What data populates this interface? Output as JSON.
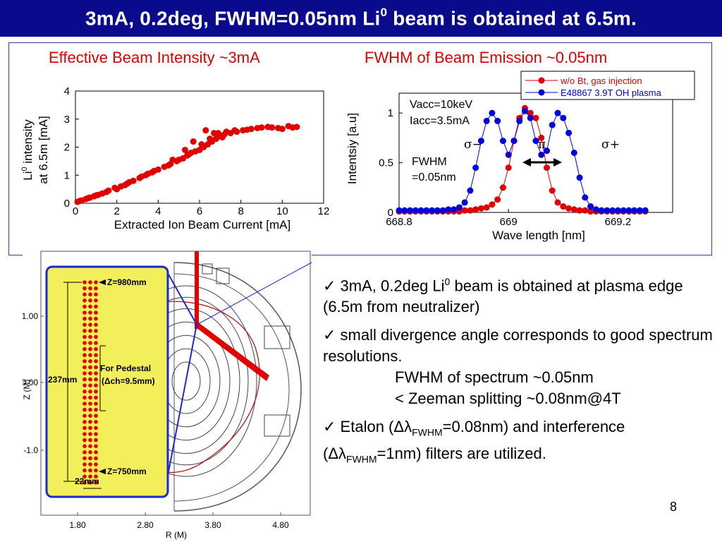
{
  "slide": {
    "title": "3mA, 0.2deg, FWHM=0.05nm Li",
    "title_sup": "0",
    "title_rest": " beam is obtained at 6.5m.",
    "page_number": "8"
  },
  "colors": {
    "title_bg": "#0a0a8c",
    "red": "#e00000",
    "blue": "#0000dd",
    "figure_yellow": "#f2ef5a"
  },
  "bullets": [
    {
      "check": "✓",
      "pre": " 3mA, 0.2deg Li",
      "sup": "0",
      "post": " beam is obtained at plasma edge (6.5m from neutralizer)"
    },
    {
      "check": "✓",
      "text": " small divergence angle corresponds to good spectrum resolutions.",
      "indent1": "FWHM of spectrum ~0.05nm",
      "indent2": "< Zeeman splitting ~0.08nm@4T"
    },
    {
      "check": "✓",
      "a": " Etalon (",
      "symbol1": "Δλ",
      "sub1": "FWHM",
      "b": "=0.08nm) and interference (",
      "symbol2": "Δλ",
      "sub2": "FWHM",
      "c": "=1nm) filters are utilized."
    }
  ],
  "chart_data": [
    {
      "type": "scatter",
      "title": "Effective Beam Intensity ~3mA",
      "xlabel": "Extracted Ion Beam Current [mA]",
      "ylabel_line1": "Li",
      "ylabel_sup": "0",
      "ylabel_line1_rest": " intensity",
      "ylabel_line2": "at 6.5m [mA]",
      "xlim": [
        0,
        12
      ],
      "ylim": [
        0,
        4
      ],
      "xticks": [
        "0",
        "2",
        "4",
        "6",
        "8",
        "10",
        "12"
      ],
      "yticks": [
        "0",
        "1",
        "2",
        "3",
        "4"
      ],
      "series": [
        {
          "color": "#e00000",
          "x": [
            0.1,
            0.3,
            0.5,
            0.7,
            0.9,
            1.1,
            1.3,
            1.6,
            1.9,
            2.2,
            2.5,
            2.8,
            3.1,
            3.4,
            3.7,
            4.0,
            4.3,
            4.6,
            4.9,
            5.2,
            5.4,
            5.6,
            5.8,
            6.0,
            6.2,
            6.4,
            6.6,
            6.8,
            7.0,
            7.2,
            7.5,
            7.8,
            8.1,
            8.5,
            9.0,
            9.5,
            10.0,
            10.5,
            0.2,
            0.6,
            1.0,
            1.5,
            2.0,
            2.6,
            3.2,
            3.8,
            4.5,
            5.0,
            5.5,
            6.1,
            6.5,
            6.9,
            7.3,
            7.7,
            8.3,
            8.8,
            9.3,
            9.8,
            10.3,
            10.7,
            5.3,
            5.7,
            6.3,
            6.7,
            7.1,
            4.7,
            3.5,
            2.4
          ],
          "y": [
            0.05,
            0.1,
            0.15,
            0.2,
            0.25,
            0.3,
            0.35,
            0.45,
            0.55,
            0.6,
            0.7,
            0.8,
            0.9,
            1.0,
            1.1,
            1.2,
            1.3,
            1.4,
            1.5,
            1.6,
            1.7,
            1.8,
            1.85,
            1.9,
            2.0,
            2.1,
            2.2,
            2.3,
            2.4,
            2.45,
            2.5,
            2.55,
            2.6,
            2.65,
            2.7,
            2.7,
            2.65,
            2.7,
            0.08,
            0.18,
            0.28,
            0.4,
            0.5,
            0.75,
            0.95,
            1.15,
            1.35,
            1.55,
            1.75,
            2.1,
            2.3,
            2.5,
            2.55,
            2.6,
            2.62,
            2.68,
            2.72,
            2.68,
            2.75,
            2.72,
            1.9,
            2.2,
            2.6,
            2.5,
            2.35,
            1.55,
            1.05,
            0.65
          ]
        }
      ]
    },
    {
      "type": "line",
      "title": "FWHM of Beam Emission ~0.05nm",
      "xlabel": "Wave length [nm]",
      "ylabel": "Intentsiy [a.u]",
      "xlim": [
        668.8,
        669.3
      ],
      "ylim": [
        0,
        1.2
      ],
      "xticks": [
        "668.8",
        "669",
        "669.2"
      ],
      "yticks": [
        "0",
        "0.5",
        "1"
      ],
      "annotations": {
        "vacc": "Vacc=10keV",
        "iacc": "Iacc=3.5mA",
        "sigma_minus": "σ−",
        "pi": "π",
        "sigma_plus": "σ+",
        "fwhm1": "FWHM",
        "fwhm2": "=0.05nm"
      },
      "series": [
        {
          "name": "w/o Bt, gas injection",
          "color": "#e00000",
          "x": [
            668.8,
            668.81,
            668.82,
            668.83,
            668.84,
            668.85,
            668.86,
            668.87,
            668.88,
            668.89,
            668.9,
            668.91,
            668.92,
            668.93,
            668.94,
            668.95,
            668.96,
            668.97,
            668.98,
            668.99,
            669.0,
            669.01,
            669.02,
            669.03,
            669.04,
            669.05,
            669.06,
            669.07,
            669.08,
            669.09,
            669.1,
            669.11,
            669.12,
            669.13,
            669.14,
            669.15,
            669.16,
            669.17,
            669.18,
            669.19,
            669.2,
            669.21,
            669.22,
            669.23,
            669.24,
            669.25
          ],
          "y": [
            0.01,
            0.01,
            0.01,
            0.01,
            0.01,
            0.01,
            0.01,
            0.01,
            0.01,
            0.01,
            0.01,
            0.01,
            0.02,
            0.02,
            0.03,
            0.04,
            0.05,
            0.08,
            0.13,
            0.25,
            0.45,
            0.72,
            0.95,
            1.05,
            1.0,
            0.95,
            0.75,
            0.45,
            0.22,
            0.1,
            0.06,
            0.04,
            0.03,
            0.02,
            0.02,
            0.01,
            0.01,
            0.01,
            0.01,
            0.01,
            0.01,
            0.01,
            0.01,
            0.01,
            0.01,
            0.01
          ]
        },
        {
          "name": "E48867 3.9T OH plasma",
          "color": "#0000dd",
          "x": [
            668.8,
            668.81,
            668.82,
            668.83,
            668.84,
            668.85,
            668.86,
            668.87,
            668.88,
            668.89,
            668.9,
            668.91,
            668.92,
            668.93,
            668.94,
            668.95,
            668.96,
            668.97,
            668.98,
            668.99,
            669.0,
            669.01,
            669.02,
            669.03,
            669.04,
            669.05,
            669.06,
            669.07,
            669.08,
            669.09,
            669.1,
            669.11,
            669.12,
            669.13,
            669.14,
            669.15,
            669.16,
            669.17,
            669.18,
            669.19,
            669.2,
            669.21,
            669.22,
            669.23,
            669.24,
            669.25
          ],
          "y": [
            0.02,
            0.02,
            0.02,
            0.02,
            0.02,
            0.02,
            0.02,
            0.02,
            0.02,
            0.03,
            0.03,
            0.05,
            0.1,
            0.22,
            0.45,
            0.72,
            0.92,
            1.0,
            0.92,
            0.72,
            0.58,
            0.72,
            0.92,
            1.02,
            0.95,
            0.72,
            0.58,
            0.62,
            0.88,
            1.0,
            0.95,
            0.8,
            0.6,
            0.35,
            0.15,
            0.06,
            0.03,
            0.02,
            0.02,
            0.02,
            0.02,
            0.02,
            0.02,
            0.02,
            0.02,
            0.02
          ]
        }
      ]
    }
  ],
  "figure": {
    "z_axis_label": "Z (M)",
    "r_axis_label": "R (M)",
    "z_ticks": [
      "1.00",
      "0.00",
      "-1.0"
    ],
    "r_ticks": [
      "1.80",
      "2.80",
      "3.80",
      "4.80"
    ],
    "label_top": "Z=980mm",
    "label_bottom": "Z=750mm",
    "label_pedestal1": "For Pedestal",
    "label_pedestal2": "(Δch=9.5mm)",
    "label_237": "237mm",
    "label_22": "22mm"
  }
}
